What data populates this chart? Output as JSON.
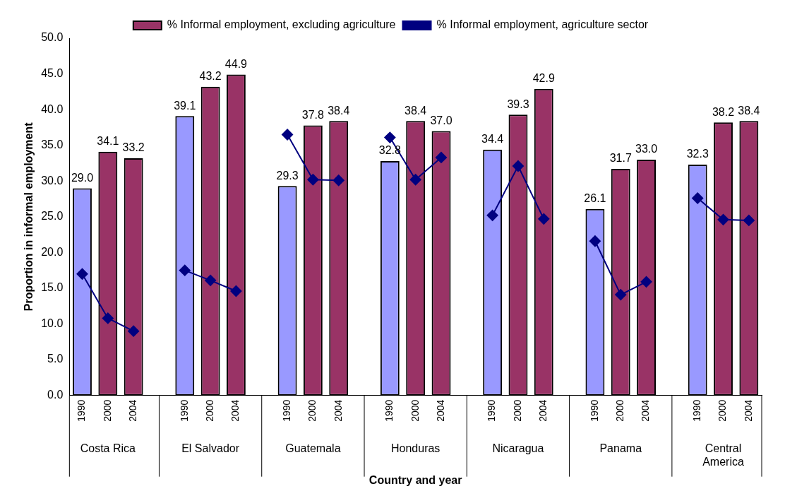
{
  "chart_data": {
    "type": "bar",
    "xlabel": "Country and year",
    "ylabel": "Proportion in informal employment",
    "categories": [
      "1990",
      "2000",
      "2004",
      null,
      "1990",
      "2000",
      "2004",
      null,
      "1990",
      "2000",
      "2004",
      null,
      "1990",
      "2000",
      "2004",
      null,
      "1990",
      "2000",
      "2004",
      null,
      "1990",
      "2000",
      "2004",
      null,
      "1990",
      "2000",
      "2004"
    ],
    "annotations": [
      "Costa Rica",
      "El Salvador",
      "Guatemala",
      "Honduras",
      "Nicaragua",
      "Panama",
      "Central America"
    ],
    "series": [
      {
        "name": "% Informal employment, excluding agriculture",
        "color": "#993366",
        "colors": [
          "#9999ff",
          "#993366",
          "#993366",
          null,
          "#9999ff",
          "#993366",
          "#993366",
          null,
          "#9999ff",
          "#993366",
          "#993366",
          null,
          "#9999ff",
          "#993366",
          "#993366",
          null,
          "#9999ff",
          "#993366",
          "#993366",
          null,
          "#9999ff",
          "#993366",
          "#993366",
          null,
          "#9999ff",
          "#993366",
          "#993366"
        ],
        "values": [
          29.0,
          34.1,
          33.2,
          null,
          39.1,
          43.2,
          44.9,
          null,
          29.3,
          37.8,
          38.4,
          null,
          32.8,
          38.4,
          37.0,
          null,
          34.4,
          39.3,
          42.9,
          null,
          26.1,
          31.7,
          33.0,
          null,
          32.3,
          38.2,
          38.4
        ],
        "value_labels": [
          "29.0",
          "34.1",
          "33.2",
          null,
          "39.1",
          "43.2",
          "44.9",
          null,
          "29.3",
          "37.8",
          "38.4",
          null,
          "32.8",
          "38.4",
          "37.0",
          null,
          "34.4",
          "39.3",
          "42.9",
          null,
          "26.1",
          "31.7",
          "33.0",
          null,
          "32.3",
          "38.2",
          "38.4"
        ]
      },
      {
        "name": "% Informal employment, agriculture sector",
        "type": "line",
        "color": "#000080",
        "marker": "diamond",
        "values": [
          17.0,
          10.8,
          9.0,
          null,
          17.5,
          16.1,
          14.6,
          null,
          36.5,
          30.2,
          30.1,
          null,
          36.1,
          30.2,
          33.3,
          null,
          25.2,
          32.1,
          24.7,
          null,
          21.6,
          14.1,
          15.9,
          null,
          27.6,
          24.6,
          24.5
        ]
      }
    ],
    "ylim": [
      0,
      50
    ],
    "yticks": [
      {
        "value": 0,
        "label": "0.0"
      },
      {
        "value": 5,
        "label": "5.0"
      },
      {
        "value": 10,
        "label": "10.0"
      },
      {
        "value": 15,
        "label": "15.0"
      },
      {
        "value": 20,
        "label": "20.0"
      },
      {
        "value": 25,
        "label": "25.0"
      },
      {
        "value": 30,
        "label": "30.0"
      },
      {
        "value": 35,
        "label": "35.0"
      },
      {
        "value": 40,
        "label": "40.0"
      },
      {
        "value": 45,
        "label": "45.0"
      },
      {
        "value": 50,
        "label": "50.0"
      }
    ],
    "grid": false,
    "legend": "top right"
  }
}
